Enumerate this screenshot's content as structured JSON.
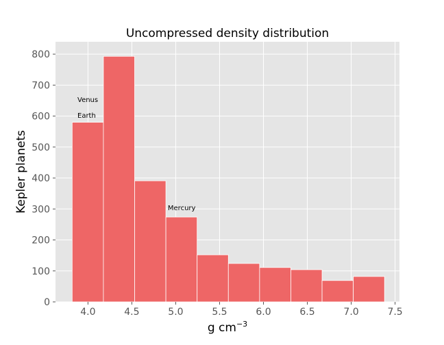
{
  "chart_data": {
    "type": "bar",
    "title": "Uncompressed density distribution",
    "xlabel": "g cm",
    "xlabel_sup": "−3",
    "ylabel": "Kepler planets",
    "xlim": [
      3.63,
      7.55
    ],
    "ylim": [
      0,
      840
    ],
    "xticks": [
      4.0,
      4.5,
      5.0,
      5.5,
      6.0,
      6.5,
      7.0,
      7.5
    ],
    "xtick_labels": [
      "4.0",
      "4.5",
      "5.0",
      "5.5",
      "6.0",
      "6.5",
      "7.0",
      "7.5"
    ],
    "yticks": [
      0,
      100,
      200,
      300,
      400,
      500,
      600,
      700,
      800
    ],
    "ytick_labels": [
      "0",
      "100",
      "200",
      "300",
      "400",
      "500",
      "600",
      "700",
      "800"
    ],
    "grid": true,
    "bin_edges": [
      3.82,
      4.176,
      4.532,
      4.888,
      5.244,
      5.6,
      5.956,
      6.312,
      6.668,
      7.024,
      7.38
    ],
    "values": [
      580,
      793,
      391,
      274,
      152,
      124,
      111,
      104,
      69,
      82
    ],
    "annotations": [
      {
        "text": "Venus",
        "x": 3.88,
        "y": 645
      },
      {
        "text": "Earth",
        "x": 3.88,
        "y": 595
      },
      {
        "text": "Mercury",
        "x": 4.91,
        "y": 296
      }
    ],
    "bar_color": "#ee6666",
    "background_color": "#e5e5e5"
  }
}
